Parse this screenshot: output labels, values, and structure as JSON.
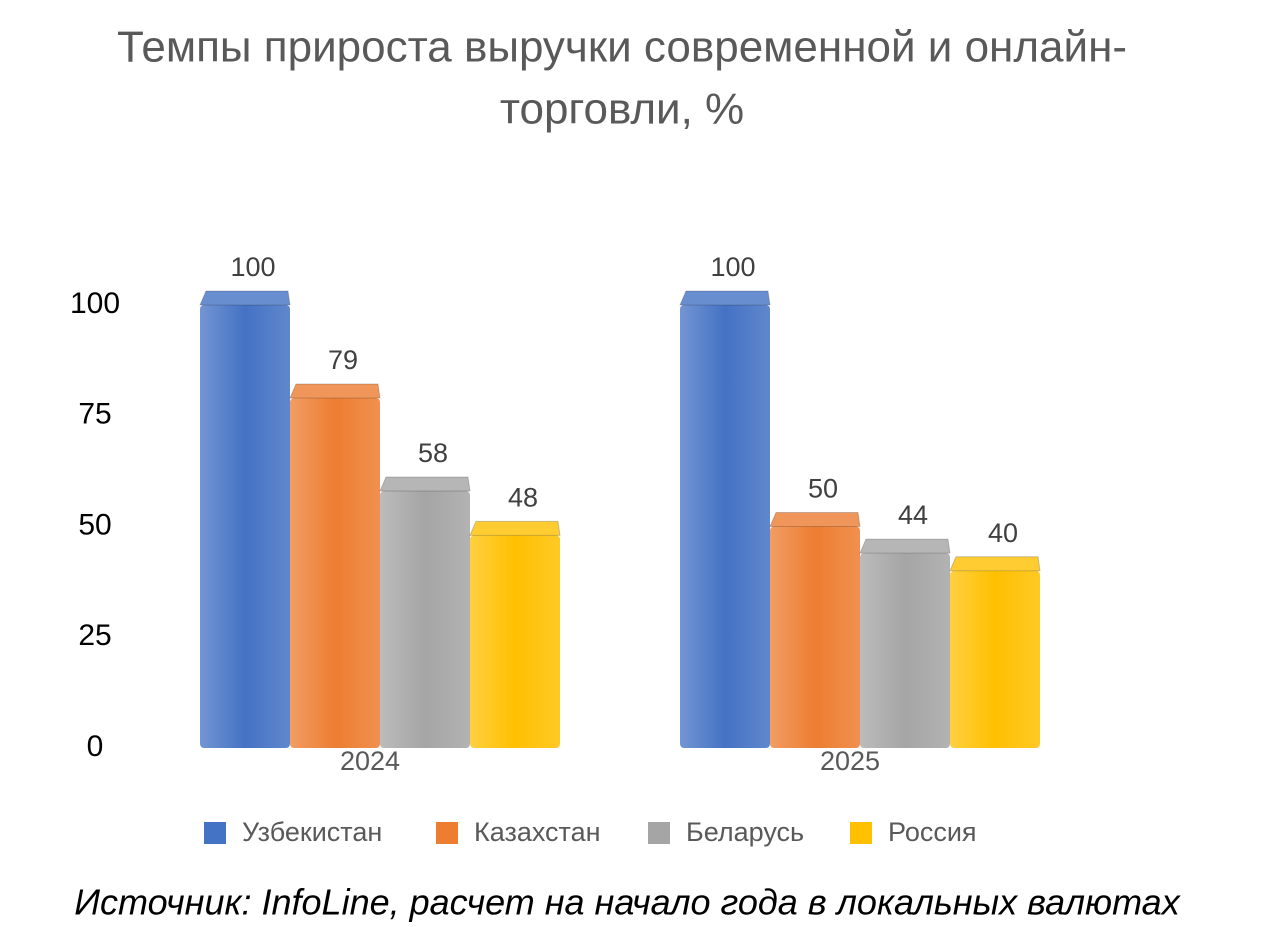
{
  "chart_data": {
    "type": "bar",
    "title": "Темпы прироста выручки современной и онлайн-торговли, %",
    "title_lines": [
      "Темпы прироста выручки современной и онлайн-",
      "торговли, %"
    ],
    "categories": [
      "2024",
      "2025"
    ],
    "series": [
      {
        "name": "Узбекистан",
        "color": "#4472c4",
        "values": [
          100,
          100
        ]
      },
      {
        "name": "Казахстан",
        "color": "#ed7d31",
        "values": [
          79,
          50
        ]
      },
      {
        "name": "Беларусь",
        "color": "#a5a5a5",
        "values": [
          58,
          44
        ]
      },
      {
        "name": "Россия",
        "color": "#ffc000",
        "values": [
          48,
          40
        ]
      }
    ],
    "ylim": [
      0,
      100
    ],
    "yticks": [
      0,
      25,
      50,
      75,
      100
    ],
    "grid": false,
    "legend": "bottom",
    "source": "Источник: InfoLine, расчет на начало года в локальных валютах"
  }
}
